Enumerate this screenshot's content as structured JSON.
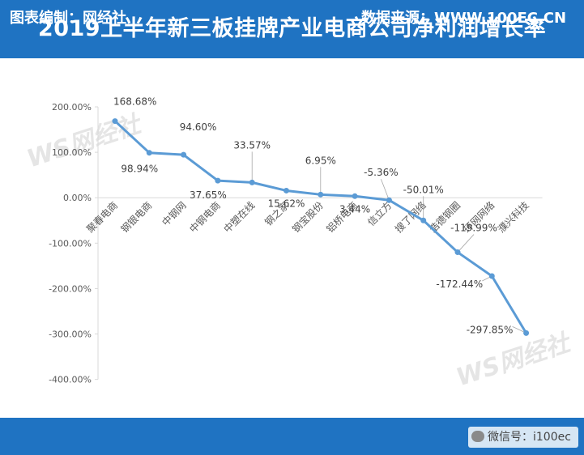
{
  "header": {
    "title": "2019上半年新三板挂牌产业电商公司净利润增长率"
  },
  "footer": {
    "left_text": "图表编制：网经社",
    "right_text": "数据来源：WWW.100EC.CN",
    "wechat_text": "微信号：i100ec"
  },
  "watermarks": {
    "brand": "WS网经社"
  },
  "colors": {
    "header_bg": "#1f73c2",
    "line": "#5b9bd5",
    "axis_text": "#595959",
    "grid": "#d9d9d9"
  },
  "chart_data": {
    "type": "line",
    "title": "",
    "xlabel": "",
    "ylabel": "",
    "ylim": [
      -400,
      200
    ],
    "yticks": [
      200,
      100,
      0,
      -100,
      -200,
      -300,
      -400
    ],
    "ytick_labels": [
      "200.00%",
      "100.00%",
      "0.00%",
      "-100.00%",
      "-200.00%",
      "-300.00%",
      "-400.00%"
    ],
    "grid": false,
    "categories": [
      "聚春电商",
      "钢银电商",
      "中钢网",
      "中钢电商",
      "中塑在线",
      "钢之家",
      "钢宝股份",
      "铝桥电商",
      "信立方",
      "搜了网络",
      "浩德钢圈",
      "环网网络",
      "濮兴科技"
    ],
    "series": [
      {
        "values": [
          168.68,
          98.94,
          94.6,
          37.65,
          33.57,
          15.62,
          6.95,
          3.44,
          -5.36,
          -50.01,
          -119.99,
          -172.44,
          -297.85
        ],
        "labels": [
          "168.68%",
          "98.94%",
          "94.60%",
          "37.65%",
          "33.57%",
          "15.62%",
          "6.95%",
          "3.44%",
          "-5.36%",
          "-50.01%",
          "-119.99%",
          "-172.44%",
          "-297.85%"
        ]
      }
    ]
  }
}
